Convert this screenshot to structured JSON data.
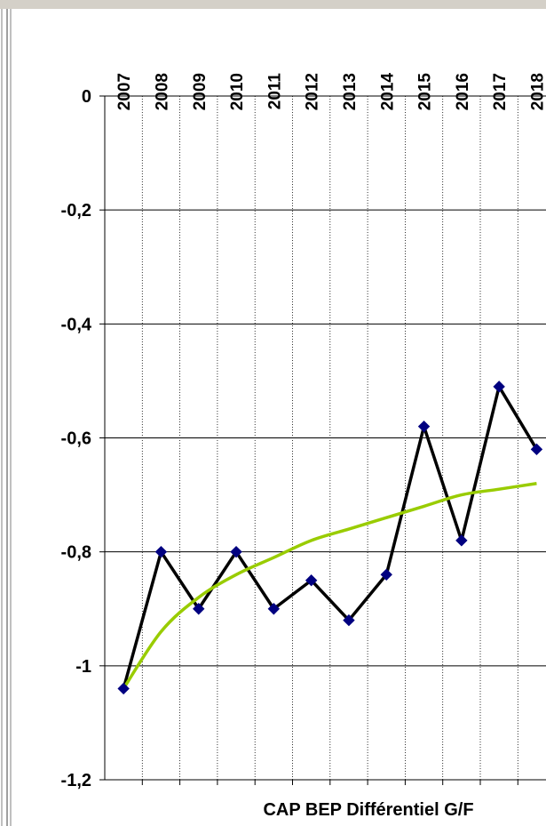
{
  "chart_data": {
    "type": "line",
    "title": "CAP BEP Différentiel G/F",
    "categories": [
      "2007",
      "2008",
      "2009",
      "2010",
      "2011",
      "2012",
      "2013",
      "2014",
      "2015",
      "2016",
      "2017",
      "2018"
    ],
    "series": [
      {
        "color": "#000080",
        "line_color": "#000000",
        "marker": "diamond",
        "values": [
          -1.04,
          -0.8,
          -0.9,
          -0.8,
          -0.9,
          -0.85,
          -0.92,
          -0.84,
          -0.58,
          -0.78,
          -0.51,
          -0.62
        ]
      },
      {
        "color": "#99cc00",
        "trendline": "logarithmic",
        "values": [
          -1.04,
          -0.94,
          -0.88,
          -0.84,
          -0.81,
          -0.78,
          -0.76,
          -0.74,
          -0.72,
          -0.7,
          -0.69,
          -0.68
        ]
      }
    ],
    "ylim": [
      -1.2,
      0
    ],
    "yticks": [
      0,
      {
        "value": -0.2,
        "label": "-0,2"
      },
      {
        "value": -0.4,
        "label": "-0,4"
      },
      {
        "value": -0.6,
        "label": "-0,6"
      },
      {
        "value": -0.8,
        "label": "-0,8"
      },
      -1,
      {
        "value": -1.2,
        "label": "-1,2"
      }
    ],
    "grid": true
  }
}
